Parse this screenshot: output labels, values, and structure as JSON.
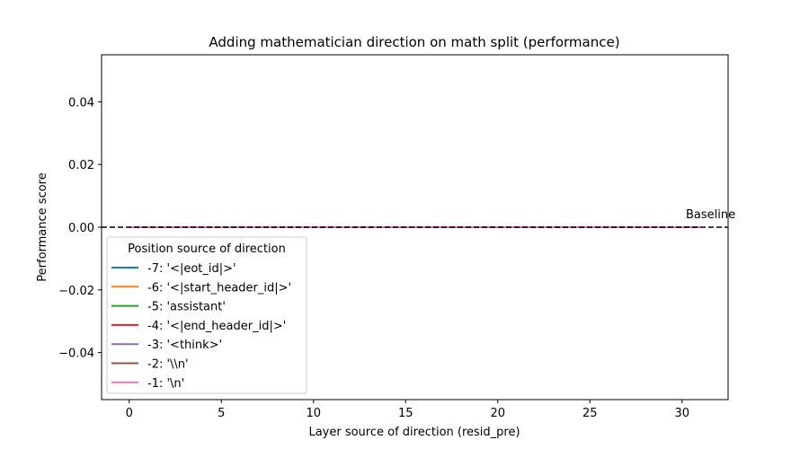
{
  "chart_data": {
    "type": "line",
    "title": "Adding mathematician direction on math split (performance)",
    "xlabel": "Layer source of direction (resid_pre)",
    "ylabel": "Performance score",
    "xlim": [
      -1.5,
      32.5
    ],
    "ylim": [
      -0.055,
      0.055
    ],
    "xticks": [
      0,
      5,
      10,
      15,
      20,
      25,
      30
    ],
    "yticks": [
      -0.04,
      -0.02,
      0.0,
      0.02,
      0.04
    ],
    "ytick_labels": [
      "−0.04",
      "−0.02",
      "0.00",
      "0.02",
      "0.04"
    ],
    "grid": false,
    "legend": {
      "title": "Position source of direction",
      "placement": "lower-left"
    },
    "baseline": {
      "y": 0.0,
      "label": "Baseline",
      "style": "dashed",
      "color": "#000000"
    },
    "x": [
      0,
      1,
      2,
      3,
      4,
      5,
      6,
      7,
      8,
      9,
      10,
      11,
      12,
      13,
      14,
      15,
      16,
      17,
      18,
      19,
      20,
      21,
      22,
      23,
      24,
      25,
      26,
      27,
      28,
      29,
      30,
      31
    ],
    "series": [
      {
        "name": "-7: '<|eot_id|>'",
        "color": "#1f77b4",
        "values": [
          0,
          0,
          0,
          0,
          0,
          0,
          0,
          0,
          0,
          0,
          0,
          0,
          0,
          0,
          0,
          0,
          0,
          0,
          0,
          0,
          0,
          0,
          0,
          0,
          0,
          0,
          0,
          0,
          0,
          0,
          0,
          0
        ]
      },
      {
        "name": "-6: '<|start_header_id|>'",
        "color": "#ff7f0e",
        "values": [
          0,
          0,
          0,
          0,
          0,
          0,
          0,
          0,
          0,
          0,
          0,
          0,
          0,
          0,
          0,
          0,
          0,
          0,
          0,
          0,
          0,
          0,
          0,
          0,
          0,
          0,
          0,
          0,
          0,
          0,
          0,
          0
        ]
      },
      {
        "name": "-5: 'assistant'",
        "color": "#2ca02c",
        "values": [
          0,
          0,
          0,
          0,
          0,
          0,
          0,
          0,
          0,
          0,
          0,
          0,
          0,
          0,
          0,
          0,
          0,
          0,
          0,
          0,
          0,
          0,
          0,
          0,
          0,
          0,
          0,
          0,
          0,
          0,
          0,
          0
        ]
      },
      {
        "name": "-4: '<|end_header_id|>'",
        "color": "#d62728",
        "values": [
          0,
          0,
          0,
          0,
          0,
          0,
          0,
          0,
          0,
          0,
          0,
          0,
          0,
          0,
          0,
          0,
          0,
          0,
          0,
          0,
          0,
          0,
          0,
          0,
          0,
          0,
          0,
          0,
          0,
          0,
          0,
          0
        ]
      },
      {
        "name": "-3: '<think>'",
        "color": "#9467bd",
        "values": [
          0,
          0,
          0,
          0,
          0,
          0,
          0,
          0,
          0,
          0,
          0,
          0,
          0,
          0,
          0,
          0,
          0,
          0,
          0,
          0,
          0,
          0,
          0,
          0,
          0,
          0,
          0,
          0,
          0,
          0,
          0,
          0
        ]
      },
      {
        "name": "-2: '\\\\n'",
        "color": "#8c564b",
        "values": [
          0,
          0,
          0,
          0,
          0,
          0,
          0,
          0,
          0,
          0,
          0,
          0,
          0,
          0,
          0,
          0,
          0,
          0,
          0,
          0,
          0,
          0,
          0,
          0,
          0,
          0,
          0,
          0,
          0,
          0,
          0,
          0
        ]
      },
      {
        "name": "-1: '\\n'",
        "color": "#e377c2",
        "values": [
          0,
          0,
          0,
          0,
          0,
          0,
          0,
          0,
          0,
          0,
          0,
          0,
          0,
          0,
          0,
          0,
          0,
          0,
          0,
          0,
          0,
          0,
          0,
          0,
          0,
          0,
          0,
          0,
          0,
          0,
          0,
          0
        ]
      }
    ]
  }
}
